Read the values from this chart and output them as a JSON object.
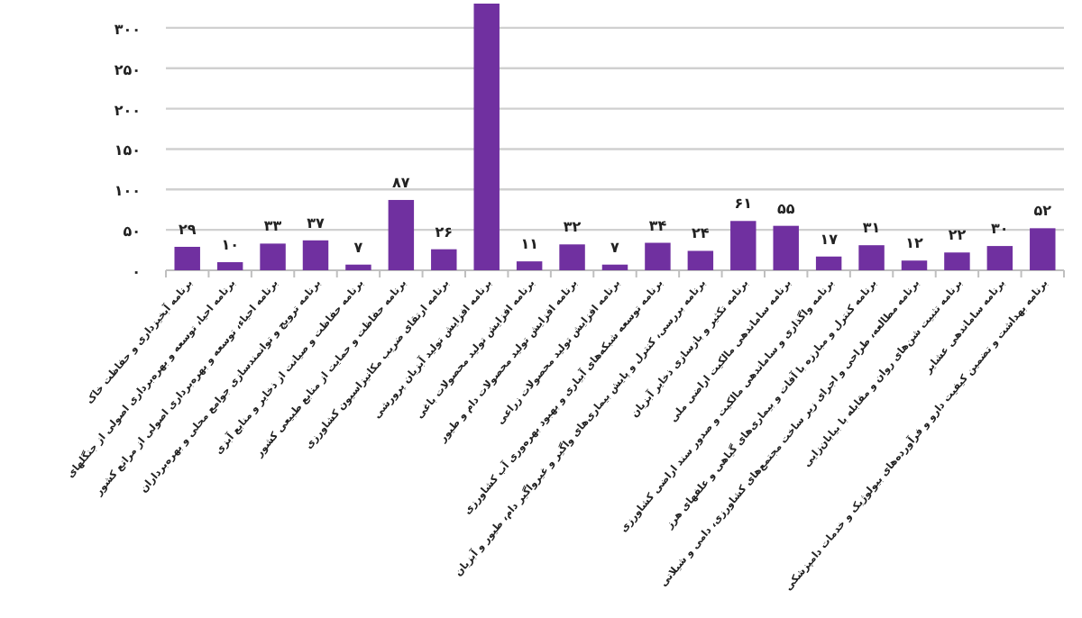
{
  "chart_data": {
    "type": "bar",
    "categories": [
      "برنامه آبخیزداری و حفاظت خاک",
      "برنامه احیا، توسعه و بهره‌برداری اصولی از جنگلهای",
      "برنامه احیاء، توسعه و بهره‌برداری اصولی از مراتع کشور",
      "برنامه ترویج و توانمندسازی جوامع محلی و بهره‌برداران",
      "برنامه حفاظت و صیانت از ذخایر و منابع آبزی",
      "برنامه حفاظت و حمایت از منابع طبیعی کشور",
      "برنامه ارتقای ضریب مکانیزاسیون کشاورزی",
      "برنامه افزایش تولید آبزیان پرورشی",
      "برنامه افزایش تولید محصولات باغی",
      "برنامه افزایش تولید محصولات دام و طیور",
      "برنامه افزایش تولید محصولات زراعی",
      "برنامه توسعه شبکه‌های آبیاری و بهبود بهره‌وری آب کشاورزی",
      "برنامه بررسی، کنترل و پایش بیماری‌های واگیر و غیرواگیر دام، طیور و آبزیان",
      "برنامه تکثیر و بازسازی ذخایر آبزیان",
      "برنامه ساماندهی مالکیت اراضی ملی",
      "برنامه واگذاری و ساماندهی مالکیت و صدور سند اراضی کشاورزی",
      "برنامه کنترل و مبارزه با آفات و بیماری‌های گیاهی و علفهای هرز",
      "برنامه مطالعه، طراحی و اجرای زیر ساخت مجتمع‌های کشاورزی، دامی و شیلاتی",
      "برنامه تثبیت شن‌های روان و مقابله با بیابان‌زایی",
      "برنامه ساماندهی عشایر",
      "برنامه بهداشت و تضمین کیفیت دارو و فرآورده‌های بیولوژیک و خدمات دامپزشکی"
    ],
    "values": [
      29,
      10,
      33,
      37,
      7,
      87,
      26,
      330,
      11,
      32,
      7,
      34,
      24,
      61,
      55,
      17,
      31,
      12,
      22,
      30,
      52
    ],
    "value_labels": [
      "۲۹",
      "۱۰",
      "۳۳",
      "۳۷",
      "۷",
      "۸۷",
      "۲۶",
      null,
      "۱۱",
      "۳۲",
      "۷",
      "۳۴",
      "۲۴",
      "۶۱",
      "۵۵",
      "۱۷",
      "۳۱",
      "۱۲",
      "۲۲",
      "۳۰",
      "۵۲"
    ],
    "color": "#7030a0",
    "ylim": [
      0,
      330
    ],
    "yticks": [
      {
        "value": 0,
        "label": "۰"
      },
      {
        "value": 50,
        "label": "۵۰"
      },
      {
        "value": 100,
        "label": "۱۰۰"
      },
      {
        "value": 150,
        "label": "۱۵۰"
      },
      {
        "value": 200,
        "label": "۲۰۰"
      },
      {
        "value": 250,
        "label": "۲۵۰"
      },
      {
        "value": 300,
        "label": "۳۰۰"
      }
    ],
    "grid": "y"
  }
}
